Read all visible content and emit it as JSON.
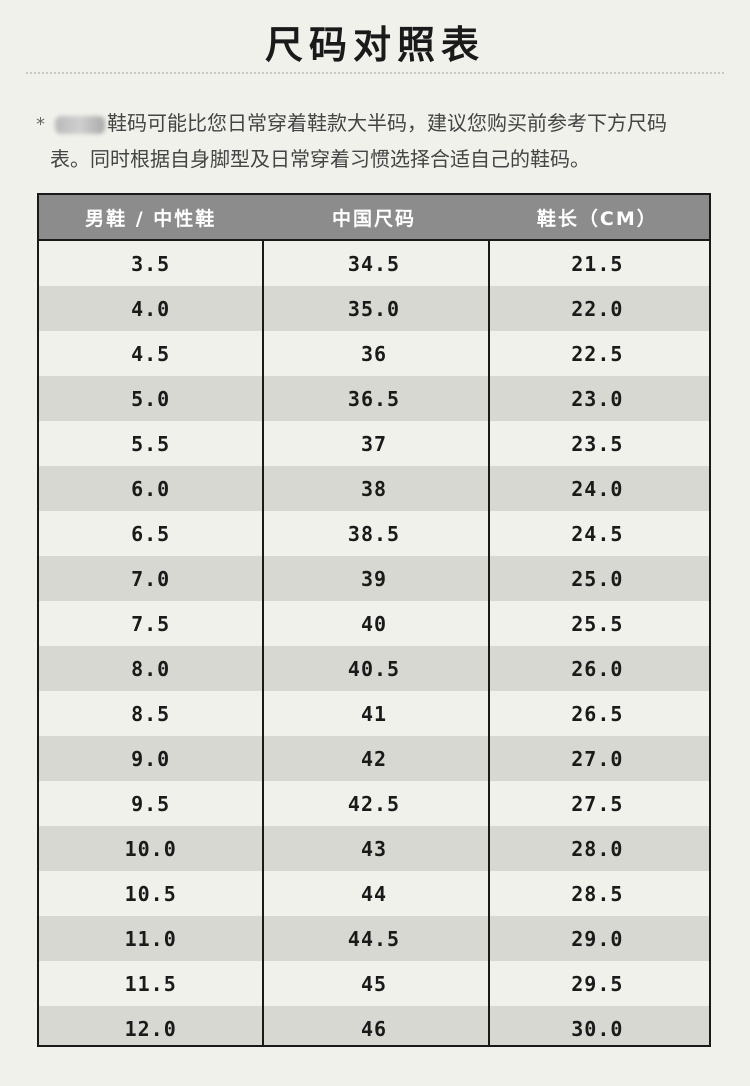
{
  "page": {
    "title": "尺码对照表",
    "note_line1": "鞋码可能比您日常穿着鞋款大半码，建议您购买前参考下方尺码",
    "note_line2": "表。同时根据自身脚型及日常穿着习惯选择合适自己的鞋码。",
    "note_star": "*"
  },
  "table": {
    "headers": [
      "男鞋 / 中性鞋",
      "中国尺码",
      "鞋长（CM）"
    ],
    "rows": [
      [
        "3.5",
        "34.5",
        "21.5"
      ],
      [
        "4.0",
        "35.0",
        "22.0"
      ],
      [
        "4.5",
        "36",
        "22.5"
      ],
      [
        "5.0",
        "36.5",
        "23.0"
      ],
      [
        "5.5",
        "37",
        "23.5"
      ],
      [
        "6.0",
        "38",
        "24.0"
      ],
      [
        "6.5",
        "38.5",
        "24.5"
      ],
      [
        "7.0",
        "39",
        "25.0"
      ],
      [
        "7.5",
        "40",
        "25.5"
      ],
      [
        "8.0",
        "40.5",
        "26.0"
      ],
      [
        "8.5",
        "41",
        "26.5"
      ],
      [
        "9.0",
        "42",
        "27.0"
      ],
      [
        "9.5",
        "42.5",
        "27.5"
      ],
      [
        "10.0",
        "43",
        "28.0"
      ],
      [
        "10.5",
        "44",
        "28.5"
      ],
      [
        "11.0",
        "44.5",
        "29.0"
      ],
      [
        "11.5",
        "45",
        "29.5"
      ],
      [
        "12.0",
        "46",
        "30.0"
      ]
    ]
  },
  "colors": {
    "background": "#f1f1ec",
    "header_bg": "#8c8c8c",
    "stripe": "#d8d8d2",
    "border": "#1a1a1a"
  }
}
